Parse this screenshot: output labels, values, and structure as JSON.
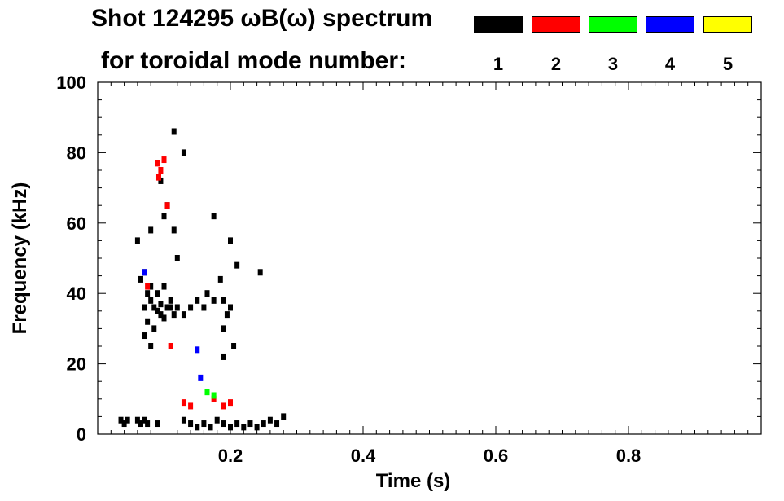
{
  "chart_data": {
    "type": "scatter",
    "title": "Shot 124295 ωB(ω) spectrum",
    "subtitle": "for toroidal mode number:",
    "xlabel": "Time (s)",
    "ylabel": "Frequency (kHz)",
    "xlim": [
      0.0,
      1.0
    ],
    "ylim": [
      0,
      100
    ],
    "x_ticks": [
      0.2,
      0.4,
      0.6,
      0.8
    ],
    "x_tick_labels": [
      "0.2",
      "0.4",
      "0.6",
      "0.8"
    ],
    "y_ticks": [
      0,
      20,
      40,
      60,
      80,
      100
    ],
    "y_tick_labels": [
      "0",
      "20",
      "40",
      "60",
      "80",
      "100"
    ],
    "grid": false,
    "legend_position": "top-right",
    "legend": [
      {
        "label": "1",
        "color": "#000000"
      },
      {
        "label": "2",
        "color": "#ff0000"
      },
      {
        "label": "3",
        "color": "#00ff00"
      },
      {
        "label": "4",
        "color": "#0000ff"
      },
      {
        "label": "5",
        "color": "#ffff00"
      }
    ],
    "series": [
      {
        "mode": "1",
        "color": "#000000",
        "points": [
          [
            0.035,
            4
          ],
          [
            0.04,
            3
          ],
          [
            0.045,
            4
          ],
          [
            0.06,
            4
          ],
          [
            0.065,
            3
          ],
          [
            0.07,
            4
          ],
          [
            0.075,
            3
          ],
          [
            0.09,
            3
          ],
          [
            0.13,
            4
          ],
          [
            0.14,
            3
          ],
          [
            0.15,
            2
          ],
          [
            0.16,
            3
          ],
          [
            0.17,
            2
          ],
          [
            0.18,
            4
          ],
          [
            0.19,
            3
          ],
          [
            0.2,
            2
          ],
          [
            0.21,
            3
          ],
          [
            0.22,
            2
          ],
          [
            0.23,
            3
          ],
          [
            0.24,
            2
          ],
          [
            0.25,
            3
          ],
          [
            0.26,
            4
          ],
          [
            0.27,
            3
          ],
          [
            0.28,
            5
          ],
          [
            0.065,
            44
          ],
          [
            0.07,
            46
          ],
          [
            0.075,
            40
          ],
          [
            0.08,
            38
          ],
          [
            0.085,
            36
          ],
          [
            0.09,
            35
          ],
          [
            0.095,
            37
          ],
          [
            0.1,
            33
          ],
          [
            0.105,
            36
          ],
          [
            0.11,
            38
          ],
          [
            0.115,
            34
          ],
          [
            0.12,
            36
          ],
          [
            0.07,
            36
          ],
          [
            0.08,
            42
          ],
          [
            0.09,
            40
          ],
          [
            0.1,
            42
          ],
          [
            0.11,
            36
          ],
          [
            0.075,
            32
          ],
          [
            0.085,
            30
          ],
          [
            0.095,
            34
          ],
          [
            0.13,
            34
          ],
          [
            0.14,
            36
          ],
          [
            0.15,
            38
          ],
          [
            0.16,
            36
          ],
          [
            0.165,
            40
          ],
          [
            0.19,
            30
          ],
          [
            0.195,
            34
          ],
          [
            0.2,
            36
          ],
          [
            0.19,
            38
          ],
          [
            0.185,
            44
          ],
          [
            0.175,
            38
          ],
          [
            0.06,
            55
          ],
          [
            0.08,
            58
          ],
          [
            0.1,
            62
          ],
          [
            0.12,
            50
          ],
          [
            0.175,
            62
          ],
          [
            0.2,
            55
          ],
          [
            0.21,
            48
          ],
          [
            0.115,
            58
          ],
          [
            0.105,
            65
          ],
          [
            0.095,
            72
          ],
          [
            0.205,
            25
          ],
          [
            0.19,
            22
          ],
          [
            0.08,
            25
          ],
          [
            0.07,
            28
          ],
          [
            0.245,
            46
          ],
          [
            0.13,
            80
          ],
          [
            0.115,
            86
          ]
        ]
      },
      {
        "mode": "2",
        "color": "#ff0000",
        "points": [
          [
            0.09,
            77
          ],
          [
            0.095,
            75
          ],
          [
            0.092,
            73
          ],
          [
            0.1,
            78
          ],
          [
            0.105,
            65
          ],
          [
            0.13,
            9
          ],
          [
            0.14,
            8
          ],
          [
            0.19,
            8
          ],
          [
            0.2,
            9
          ],
          [
            0.175,
            10
          ],
          [
            0.075,
            42
          ],
          [
            0.11,
            25
          ]
        ]
      },
      {
        "mode": "3",
        "color": "#00ff00",
        "points": [
          [
            0.165,
            12
          ],
          [
            0.175,
            11
          ]
        ]
      },
      {
        "mode": "4",
        "color": "#0000ff",
        "points": [
          [
            0.155,
            16
          ],
          [
            0.07,
            46
          ],
          [
            0.15,
            24
          ]
        ]
      }
    ]
  }
}
